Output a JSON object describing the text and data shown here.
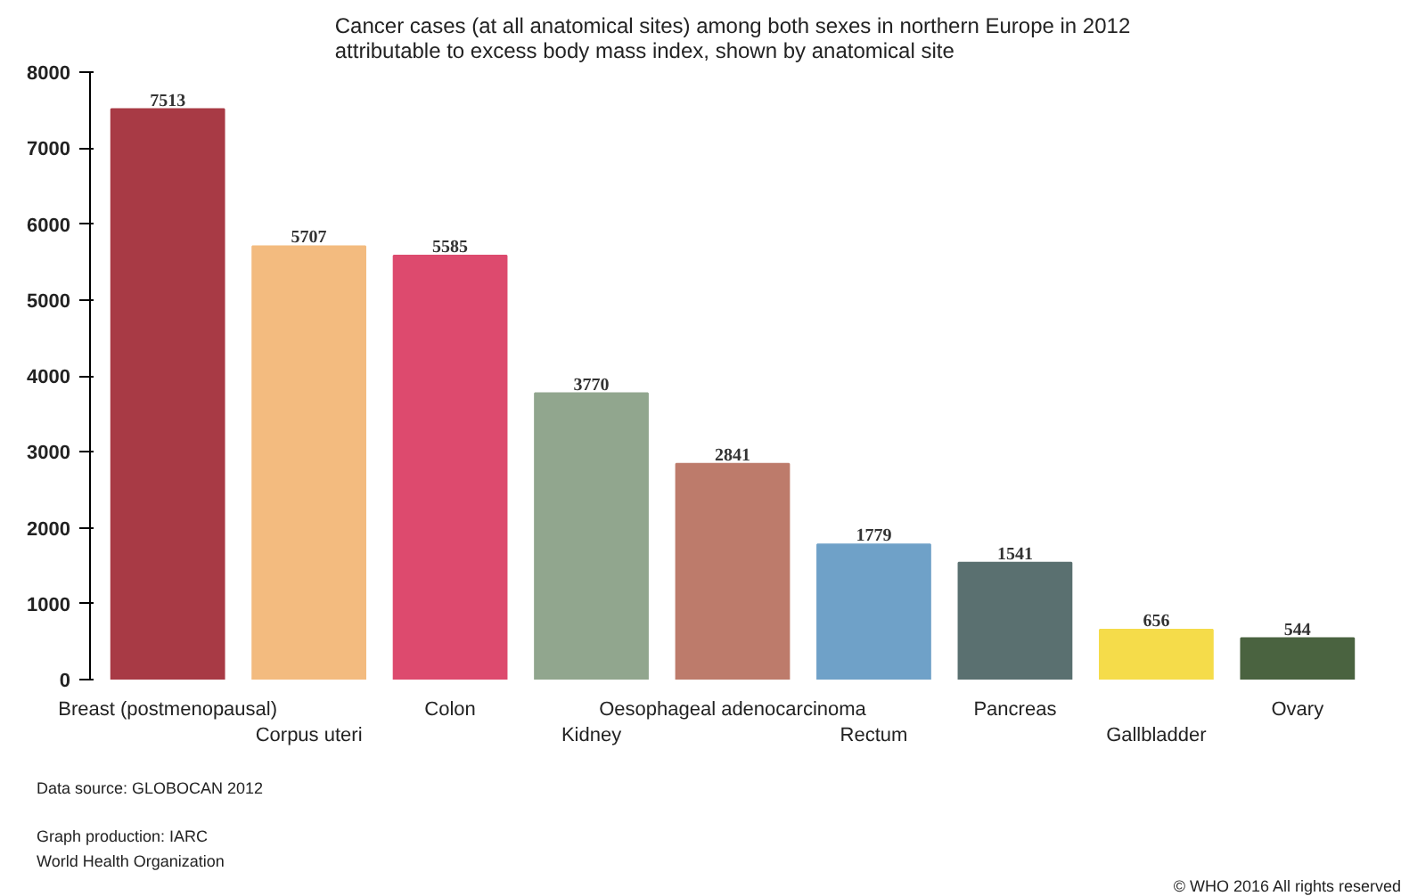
{
  "chart_data": {
    "type": "bar",
    "title": "Cancer cases (at all anatomical sites) among both sexes in northern Europe in 2012 attributable to excess body mass index, shown by anatomical site",
    "categories": [
      "Breast (postmenopausal)",
      "Corpus uteri",
      "Colon",
      "Kidney",
      "Oesophageal adenocarcinoma",
      "Rectum",
      "Pancreas",
      "Gallbladder",
      "Ovary"
    ],
    "values": [
      7513,
      5707,
      5585,
      3770,
      2841,
      1779,
      1541,
      656,
      544
    ],
    "colors": [
      "#a83a45",
      "#f3bb7f",
      "#dd4a6e",
      "#91a68e",
      "#bd7b6b",
      "#6fa1c8",
      "#5a7070",
      "#f5dc4a",
      "#4a6340"
    ],
    "ylim": [
      0,
      8000
    ],
    "yticks": [
      0,
      1000,
      2000,
      3000,
      4000,
      5000,
      6000,
      7000,
      8000
    ],
    "data_labels": true,
    "grid": false,
    "annotations": [
      "Data source: GLOBOCAN 2012",
      "Graph production: IARC",
      "World Health Organization",
      "© WHO 2016 All rights reserved"
    ]
  }
}
